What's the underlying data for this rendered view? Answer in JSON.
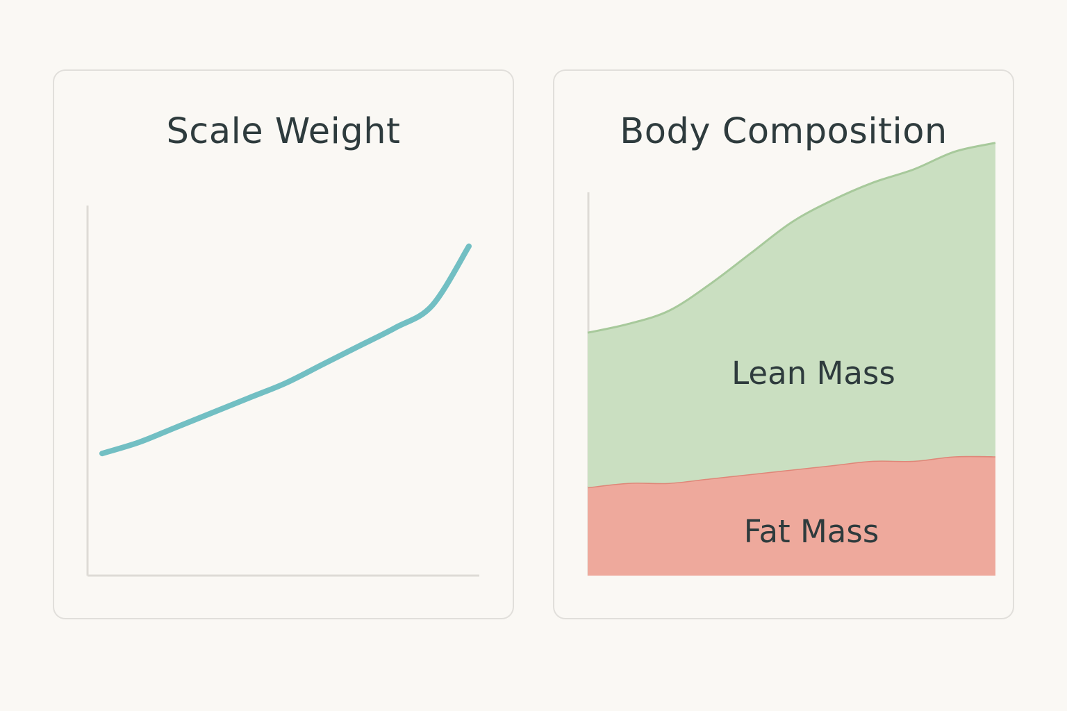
{
  "chart_data": [
    {
      "type": "line",
      "title": "Scale Weight",
      "xlabel": "",
      "ylabel": "",
      "x": [
        0,
        1,
        2,
        3,
        4,
        5,
        6,
        7,
        8,
        9,
        10
      ],
      "xlim": [
        0,
        10
      ],
      "ylim": [
        0,
        1
      ],
      "grid": false,
      "series": [
        {
          "values": [
            0.33,
            0.36,
            0.4,
            0.44,
            0.48,
            0.52,
            0.57,
            0.62,
            0.67,
            0.73,
            0.89
          ],
          "color": "#72bfc3"
        }
      ]
    },
    {
      "type": "area",
      "title": "Body Composition",
      "xlabel": "",
      "ylabel": "",
      "x": [
        0,
        1,
        2,
        3,
        4,
        5,
        6,
        7,
        8,
        9,
        10
      ],
      "xlim": [
        0,
        10
      ],
      "ylim": [
        0,
        1
      ],
      "stacked": true,
      "grid": false,
      "series": [
        {
          "name": "Fat Mass",
          "values": [
            0.2,
            0.21,
            0.21,
            0.22,
            0.23,
            0.24,
            0.25,
            0.26,
            0.26,
            0.27,
            0.27
          ],
          "color": "#eea99c",
          "line_color": "#df8678"
        },
        {
          "name": "Lean Mass",
          "values": [
            0.35,
            0.36,
            0.39,
            0.44,
            0.5,
            0.56,
            0.6,
            0.63,
            0.66,
            0.69,
            0.71
          ],
          "color": "#cadfc1",
          "line_color": "#a7c99b"
        }
      ]
    }
  ]
}
